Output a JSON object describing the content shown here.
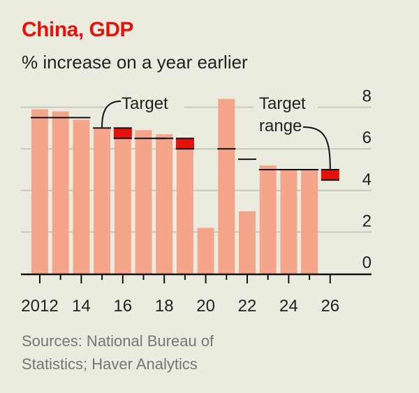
{
  "title": "China, GDP",
  "subtitle": "% increase on a year earlier",
  "source": [
    "Sources: National Bureau of",
    "Statistics; Haver Analytics"
  ],
  "colors": {
    "bar": "#f5a68a",
    "target_range": "#e3120b",
    "target_line": "#111111",
    "title": "#e3120b",
    "grid": "#c8c8bd"
  },
  "chart_data": {
    "type": "bar",
    "title": "China, GDP",
    "subtitle": "% increase on a year earlier",
    "x": [
      2012,
      2013,
      2014,
      2015,
      2016,
      2017,
      2018,
      2019,
      2020,
      2021,
      2022,
      2023,
      2024,
      2025,
      2026
    ],
    "x_tick_labels": [
      {
        "year": 2012,
        "label": "2012"
      },
      {
        "year": 2014,
        "label": "14"
      },
      {
        "year": 2016,
        "label": "16"
      },
      {
        "year": 2018,
        "label": "18"
      },
      {
        "year": 2020,
        "label": "20"
      },
      {
        "year": 2022,
        "label": "22"
      },
      {
        "year": 2024,
        "label": "24"
      },
      {
        "year": 2026,
        "label": "26"
      }
    ],
    "gdp_growth": [
      7.9,
      7.8,
      7.4,
      7.0,
      6.8,
      6.9,
      6.7,
      6.0,
      2.2,
      8.4,
      3.0,
      5.2,
      5.0,
      5.0,
      null
    ],
    "target_point": [
      7.5,
      7.5,
      7.5,
      7.0,
      null,
      6.5,
      6.5,
      null,
      null,
      6.0,
      5.5,
      5.0,
      5.0,
      5.0,
      null
    ],
    "target_range": [
      null,
      null,
      null,
      null,
      [
        6.5,
        7.0
      ],
      null,
      null,
      [
        6.0,
        6.5
      ],
      null,
      null,
      null,
      null,
      null,
      null,
      [
        4.5,
        5.0
      ]
    ],
    "ylim": [
      0,
      8.5
    ],
    "y_ticks": [
      0,
      2,
      4,
      6,
      8
    ],
    "y_axis_side": "right",
    "grid": true,
    "annotations": [
      {
        "text": [
          "Target"
        ],
        "points_to": 2015
      },
      {
        "text": [
          "Target",
          "range"
        ],
        "points_to": 2026
      }
    ]
  }
}
